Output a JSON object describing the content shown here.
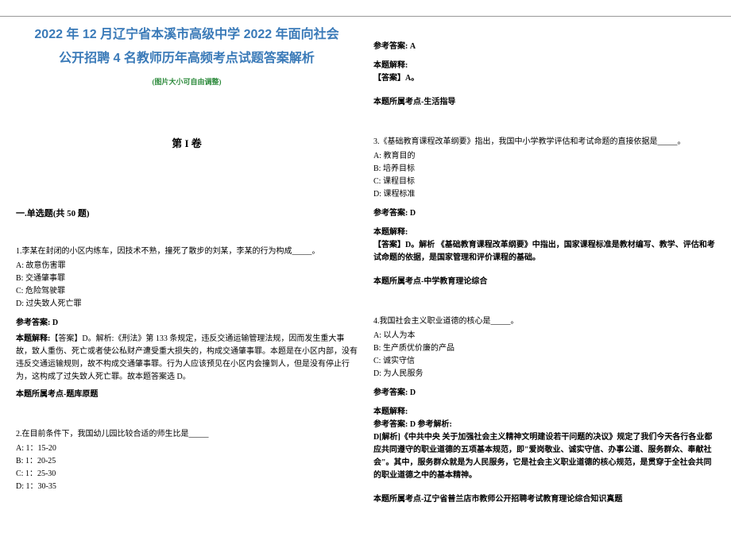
{
  "title": {
    "line1": "2022 年 12 月辽宁省本溪市高级中学 2022 年面向社会",
    "line2": "公开招聘 4 名教师历年高频考点试题答案解析",
    "color": "#3a7ab8"
  },
  "subtitle": {
    "text": "(图片大小可自由调整)",
    "color": "#2e8b3d"
  },
  "volume": "第 I 卷",
  "section": "一.单选题(共 50 题)",
  "q1": {
    "stem": "1.李某在封闭的小区内练车，因技术不熟，撞死了散步的刘某，李某的行为构成_____。",
    "optA": "A: 故意伤害罪",
    "optB": "B: 交通肇事罪",
    "optC": "C: 危险驾驶罪",
    "optD": "D: 过失致人死亡罪",
    "answer": "参考答案: D",
    "explain_label": "本题解释:",
    "explain": "【答案】D。解析:《刑法》第 133 条规定，违反交通运输管理法规，因而发生重大事故，致人重伤、死亡或者使公私财产遭受重大损失的，构成交通肇事罪。本题是在小区内部，没有违反交通运输规则，故不构成交通肇事罪。行为人应该预见在小区内会撞到人，但是没有停止行为，这构成了过失致人死亡罪。故本题答案选 D。",
    "topic": "本题所属考点-题库原题"
  },
  "q2": {
    "stem": "2.在目前条件下，我国幼儿园比较合适的师生比是_____",
    "optA": "A: 1：15-20",
    "optB": "B: 1：20-25",
    "optC": "C: 1：25-30",
    "optD": "D: 1：30-35",
    "answer": "参考答案: A",
    "explain_label": "本题解释:",
    "explain": "【答案】A。",
    "topic": "本题所属考点-生活指导"
  },
  "q3": {
    "stem": "3.《基础教育课程改革纲要》指出，我国中小学教学评估和考试命题的直接依据是_____。",
    "optA": "A: 教育目的",
    "optB": "B: 培养目标",
    "optC": "C: 课程目标",
    "optD": "D: 课程标准",
    "answer": "参考答案: D",
    "explain_label": "本题解释:",
    "explain": "【答案】D。解析 《基础教育课程改革纲要》中指出，国家课程标准是教材编写、教学、评估和考试命题的依据，是国家管理和评价课程的基础。",
    "topic": "本题所属考点-中学教育理论综合"
  },
  "q4": {
    "stem": "4.我国社会主义职业道德的核心是_____。",
    "optA": "A: 以人为本",
    "optB": "B: 生产质优价廉的产品",
    "optC": "C: 诚实守信",
    "optD": "D: 为人民服务",
    "answer": "参考答案: D",
    "explain_label": "本题解释:",
    "explain_header": "参考答案: D 参考解析:",
    "explain": "D[解析]《中共中央 关于加强社会主义精神文明建设若干问题的决议》规定了我们今天各行各业都应共同遵守的职业道德的五项基本规范，即\"爱岗敬业、诚实守信、办事公道、服务群众、奉献社会\"。其中，服务群众就是为人民服务，它是社会主义职业道德的核心规范，是贯穿于全社会共同的职业道德之中的基本精神。",
    "topic": "本题所属考点-辽宁省普兰店市教师公开招聘考试教育理论综合知识真题"
  },
  "colors": {
    "title": "#3a7ab8",
    "subtitle": "#2e8b3d",
    "text": "#000000",
    "border": "#999999"
  }
}
